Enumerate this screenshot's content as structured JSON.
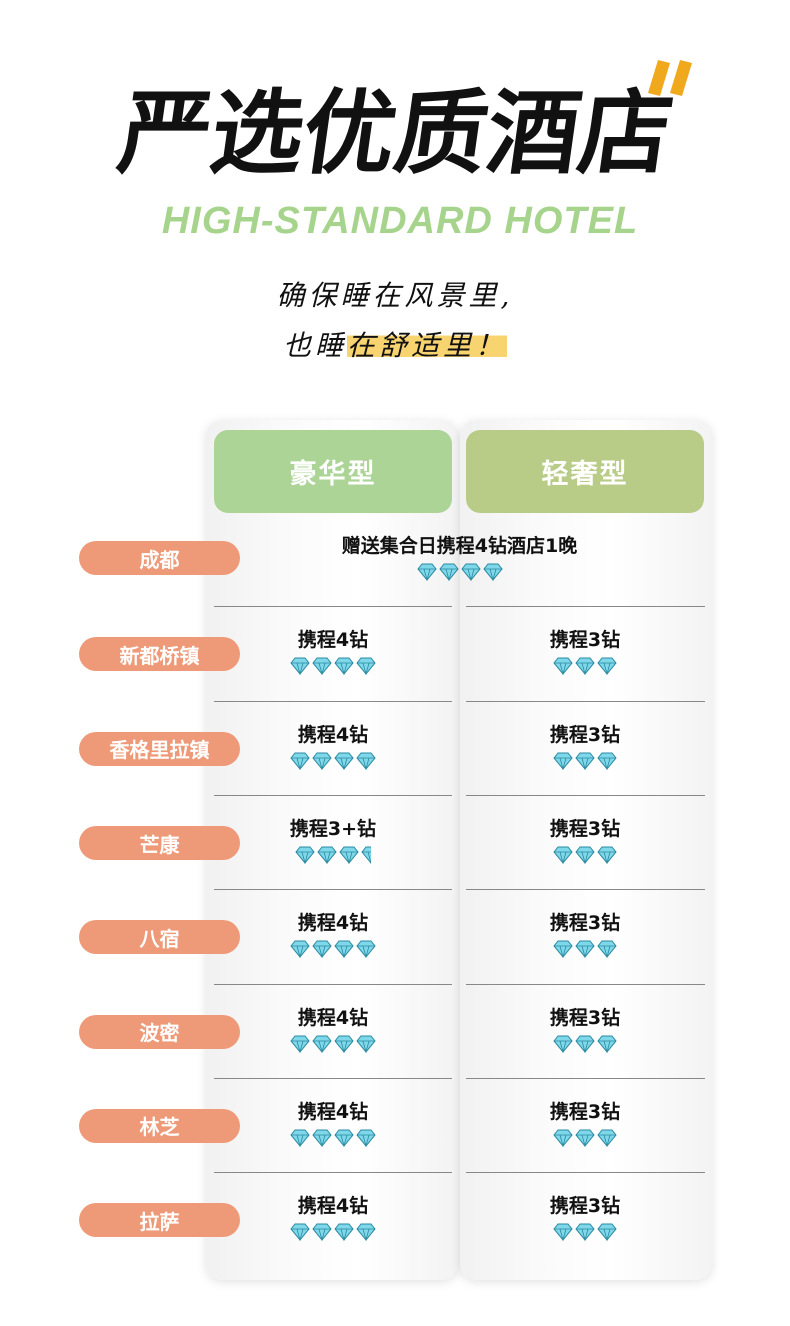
{
  "header": {
    "title": "严选优质酒店",
    "subtitle_en": "HIGH-STANDARD HOTEL",
    "slogan_line1": "确保睡在风景里,",
    "slogan_line2_a": "也睡",
    "slogan_line2_b": "在舒适里！"
  },
  "colors": {
    "pill": "#ee9a78",
    "luxury": "#acd497",
    "light_luxury": "#b8cc88",
    "accent": "#f0a81c",
    "diamond": "#7fd8ea"
  },
  "columns": [
    "豪华型",
    "轻奢型"
  ],
  "rows": [
    {
      "city": "成都",
      "merged": true,
      "text": "赠送集合日携程4钻酒店1晚",
      "diamonds": 4
    },
    {
      "city": "新都桥镇",
      "luxury": {
        "text": "携程4钻",
        "diamonds": 4
      },
      "light": {
        "text": "携程3钻",
        "diamonds": 3
      }
    },
    {
      "city": "香格里拉镇",
      "luxury": {
        "text": "携程4钻",
        "diamonds": 4
      },
      "light": {
        "text": "携程3钻",
        "diamonds": 3
      }
    },
    {
      "city": "芒康",
      "luxury": {
        "text": "携程3+钻",
        "diamonds": 3.5
      },
      "light": {
        "text": "携程3钻",
        "diamonds": 3
      }
    },
    {
      "city": "八宿",
      "luxury": {
        "text": "携程4钻",
        "diamonds": 4
      },
      "light": {
        "text": "携程3钻",
        "diamonds": 3
      }
    },
    {
      "city": "波密",
      "luxury": {
        "text": "携程4钻",
        "diamonds": 4
      },
      "light": {
        "text": "携程3钻",
        "diamonds": 3
      }
    },
    {
      "city": "林芝",
      "luxury": {
        "text": "携程4钻",
        "diamonds": 4
      },
      "light": {
        "text": "携程3钻",
        "diamonds": 3
      }
    },
    {
      "city": "拉萨",
      "luxury": {
        "text": "携程4钻",
        "diamonds": 4
      },
      "light": {
        "text": "携程3钻",
        "diamonds": 3
      }
    }
  ]
}
